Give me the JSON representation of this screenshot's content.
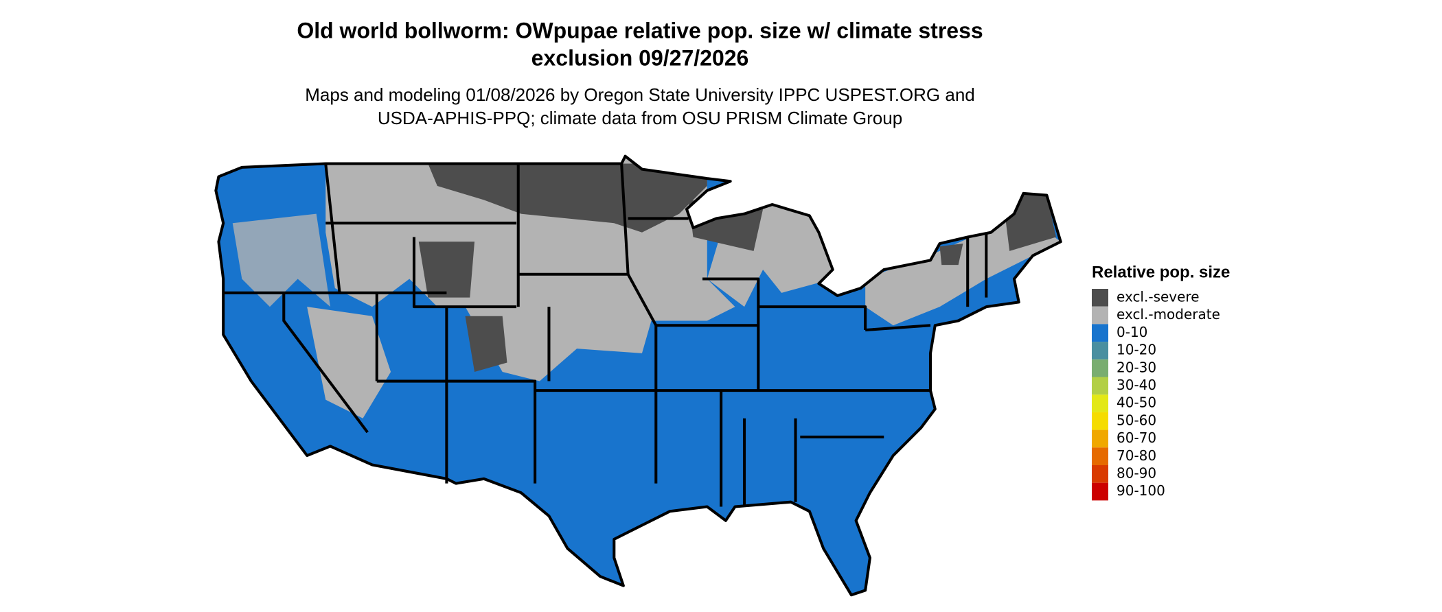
{
  "header": {
    "title": [
      "Old world bollworm: OWpupae relative pop. size w/ climate stress",
      "exclusion 09/27/2026"
    ],
    "subtitle": [
      "Maps and modeling 01/08/2026 by Oregon State University IPPC USPEST.ORG and",
      "USDA-APHIS-PPQ; climate data from OSU PRISM Climate Group"
    ]
  },
  "legend": {
    "title": "Relative pop. size",
    "items": [
      {
        "label": "excl.-severe",
        "color": "#4d4d4d"
      },
      {
        "label": "excl.-moderate",
        "color": "#b3b3b3"
      },
      {
        "label": "0-10",
        "color": "#1874cd"
      },
      {
        "label": "10-20",
        "color": "#4a8fa0"
      },
      {
        "label": "20-30",
        "color": "#79ad70"
      },
      {
        "label": "30-40",
        "color": "#b2cf46"
      },
      {
        "label": "40-50",
        "color": "#e3e817"
      },
      {
        "label": "50-60",
        "color": "#f5dc00"
      },
      {
        "label": "60-70",
        "color": "#f0a800"
      },
      {
        "label": "70-80",
        "color": "#e66a00"
      },
      {
        "label": "80-90",
        "color": "#d93a00"
      },
      {
        "label": "90-100",
        "color": "#cc0000"
      }
    ]
  }
}
